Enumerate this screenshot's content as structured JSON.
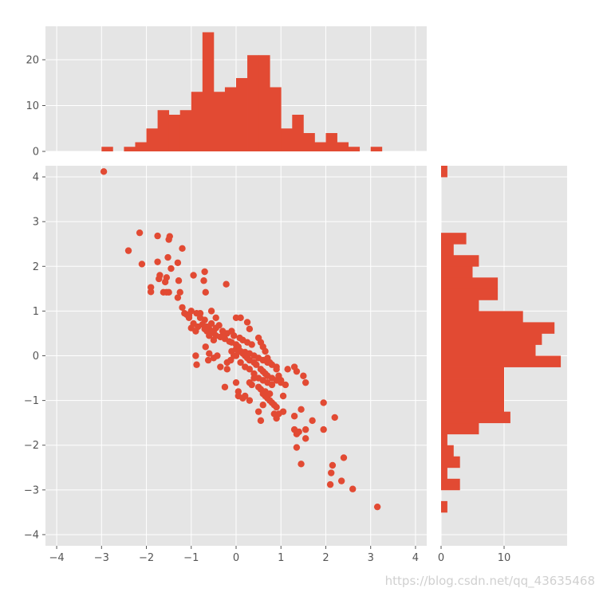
{
  "watermark": "https://blog.csdn.net/qq_43635468",
  "colors": {
    "accent": "#E24A33",
    "panel": "#E5E5E5",
    "grid": "#FFFFFF",
    "tick": "#555555"
  },
  "chart_data": [
    {
      "type": "scatter",
      "xlim": [
        -4.25,
        4.25
      ],
      "ylim": [
        -4.25,
        4.25
      ],
      "xticks": [
        -4,
        -3,
        -2,
        -1,
        0,
        1,
        2,
        3,
        4
      ],
      "yticks": [
        -4,
        -3,
        -2,
        -1,
        0,
        1,
        2,
        3,
        4
      ],
      "grid": true,
      "x": [
        -2.95,
        -2.15,
        -2.4,
        -2.1,
        -1.75,
        -1.5,
        -1.48,
        -1.2,
        -1.9,
        -1.9,
        -1.7,
        -1.72,
        -1.55,
        -1.45,
        -1.52,
        -1.75,
        -1.58,
        -1.5,
        -1.62,
        -1.55,
        -1.3,
        -1.2,
        -1.15,
        -1.05,
        -0.95,
        -0.7,
        -0.72,
        -0.68,
        -0.22,
        -1.28,
        -1.3,
        -1.25,
        -1.1,
        -1.0,
        -0.95,
        -0.88,
        -0.8,
        -0.75,
        -0.7,
        -0.6,
        -0.55,
        -0.65,
        -0.85,
        -0.9,
        -1.05,
        -1.0,
        -0.8,
        -0.7,
        -0.65,
        -0.55,
        -0.45,
        -0.38,
        -0.3,
        -0.2,
        -0.1,
        -0.05,
        0.08,
        0.15,
        0.25,
        0.35,
        -0.45,
        -0.5,
        -0.55,
        -0.6,
        -0.35,
        -0.25,
        -0.15,
        0.0,
        0.05,
        0.1,
        0.2,
        0.3,
        0.4,
        0.5,
        0.6,
        0.7,
        0.8,
        0.9,
        -0.68,
        -0.6,
        -0.5,
        -0.42,
        -0.35,
        -0.2,
        -0.1,
        0.0,
        0.1,
        0.2,
        0.3,
        0.4,
        0.5,
        0.6,
        0.7,
        0.8,
        -0.9,
        -0.88,
        -0.62,
        -0.2,
        0.0,
        0.05,
        0.05,
        0.15,
        0.3,
        0.35,
        0.5,
        0.55,
        0.6,
        0.65,
        0.7,
        0.75,
        0.8,
        0.85,
        0.9,
        1.15,
        1.3,
        1.35,
        -0.12,
        -0.05,
        -0.5,
        -0.45,
        -0.3,
        -0.1,
        0.0,
        0.05,
        0.15,
        0.2,
        0.25,
        0.3,
        0.4,
        0.45,
        0.55,
        0.6,
        0.65,
        0.7,
        0.8,
        0.9,
        1.0,
        1.1,
        0.0,
        0.1,
        0.25,
        0.3,
        0.5,
        0.55,
        0.6,
        0.65,
        0.7,
        0.75,
        0.9,
        0.95,
        1.0,
        1.05,
        0.55,
        1.05,
        1.5,
        1.55,
        1.3,
        1.45,
        1.55,
        1.7,
        1.95,
        1.3,
        1.4,
        1.35,
        1.35,
        1.55,
        1.95,
        2.2,
        2.4,
        2.15,
        2.12,
        2.1,
        2.35,
        2.6,
        3.15,
        0.85,
        0.95,
        0.6,
        0.4,
        0.65,
        0.75,
        0.5,
        0.3,
        0.2,
        -0.25,
        0.9,
        1.45
      ],
      "y": [
        4.12,
        2.75,
        2.35,
        2.05,
        2.68,
        2.6,
        2.67,
        2.4,
        1.53,
        1.43,
        1.8,
        1.72,
        1.75,
        1.95,
        2.2,
        2.1,
        1.65,
        1.42,
        1.42,
        1.42,
        1.3,
        1.08,
        0.95,
        0.85,
        1.8,
        1.88,
        1.68,
        1.42,
        1.6,
        1.68,
        2.08,
        1.42,
        0.92,
        0.62,
        0.72,
        0.95,
        0.85,
        0.7,
        0.6,
        0.6,
        0.72,
        0.55,
        0.65,
        0.55,
        0.9,
        1.0,
        0.95,
        0.8,
        0.65,
        1.0,
        0.85,
        0.68,
        0.45,
        0.5,
        0.55,
        0.45,
        0.4,
        0.35,
        0.3,
        0.25,
        0.62,
        0.55,
        0.52,
        0.45,
        0.42,
        0.38,
        0.32,
        0.25,
        0.2,
        0.1,
        0.08,
        0.05,
        0.0,
        -0.05,
        -0.1,
        -0.15,
        -0.2,
        -0.25,
        0.2,
        0.05,
        -0.05,
        0.0,
        -0.25,
        -0.15,
        0.1,
        0.0,
        -0.15,
        -0.25,
        -0.3,
        -0.4,
        -0.5,
        -0.55,
        -0.6,
        -0.65,
        0.0,
        -0.2,
        -0.1,
        -0.3,
        -0.6,
        -0.8,
        -0.9,
        -0.95,
        -0.6,
        -0.65,
        -0.7,
        -0.75,
        -0.85,
        -0.9,
        -0.95,
        -1.0,
        -1.05,
        -1.1,
        -1.15,
        -0.3,
        -0.25,
        -0.35,
        -0.1,
        0.0,
        0.35,
        0.45,
        0.55,
        0.3,
        0.15,
        0.1,
        0.05,
        0.0,
        -0.05,
        -0.1,
        -0.15,
        -0.2,
        -0.3,
        -0.35,
        -0.4,
        -0.45,
        -0.5,
        -0.55,
        -0.6,
        -0.65,
        0.85,
        0.85,
        0.75,
        0.6,
        0.4,
        0.3,
        0.2,
        0.1,
        -0.05,
        -0.15,
        -0.3,
        -0.45,
        -0.55,
        -0.9,
        -1.45,
        -1.25,
        -0.45,
        -0.6,
        -1.35,
        -1.2,
        -1.65,
        -1.45,
        -1.05,
        -1.65,
        -1.7,
        -1.75,
        -2.05,
        -1.85,
        -1.65,
        -1.38,
        -2.28,
        -2.45,
        -2.62,
        -2.88,
        -2.8,
        -2.98,
        -3.38,
        -1.3,
        -1.3,
        -1.1,
        -0.5,
        -0.8,
        -0.85,
        -1.25,
        -1.0,
        -0.9,
        -0.7,
        -1.4,
        -2.42
      ]
    },
    {
      "type": "bar",
      "orientation": "vertical",
      "xlim": [
        -4.25,
        4.25
      ],
      "ylim": [
        0,
        27.3
      ],
      "yticks": [
        0,
        10,
        20
      ],
      "bin_width": 0.25,
      "bin_left_edges": [
        -3.0,
        -2.75,
        -2.5,
        -2.25,
        -2.0,
        -1.75,
        -1.5,
        -1.25,
        -1.0,
        -0.75,
        -0.5,
        -0.25,
        0.0,
        0.25,
        0.5,
        0.75,
        1.0,
        1.25,
        1.5,
        1.75,
        2.0,
        2.25,
        2.5,
        2.75,
        3.0
      ],
      "values": [
        1,
        0,
        1,
        2,
        5,
        9,
        8,
        9,
        13,
        26,
        13,
        14,
        16,
        21,
        21,
        14,
        5,
        8,
        4,
        2,
        4,
        2,
        1,
        0,
        1
      ]
    },
    {
      "type": "bar",
      "orientation": "horizontal",
      "ylim": [
        -4.25,
        4.25
      ],
      "xlim": [
        0,
        20
      ],
      "xticks": [
        0,
        10
      ],
      "bin_height": 0.25,
      "bin_bottom_edges": [
        -3.5,
        -3.25,
        -3.0,
        -2.75,
        -2.5,
        -2.25,
        -2.0,
        -1.75,
        -1.5,
        -1.25,
        -1.0,
        -0.75,
        -0.5,
        -0.25,
        0.0,
        0.25,
        0.5,
        0.75,
        1.0,
        1.25,
        1.5,
        1.75,
        2.0,
        2.25,
        2.5,
        2.75,
        3.0,
        3.25,
        3.5,
        3.75,
        4.0
      ],
      "values": [
        1,
        0,
        3,
        1,
        3,
        2,
        1,
        6,
        11,
        10,
        10,
        10,
        10,
        19,
        15,
        16,
        18,
        13,
        6,
        9,
        9,
        5,
        6,
        2,
        4,
        0,
        0,
        0,
        0,
        0,
        1
      ]
    }
  ]
}
